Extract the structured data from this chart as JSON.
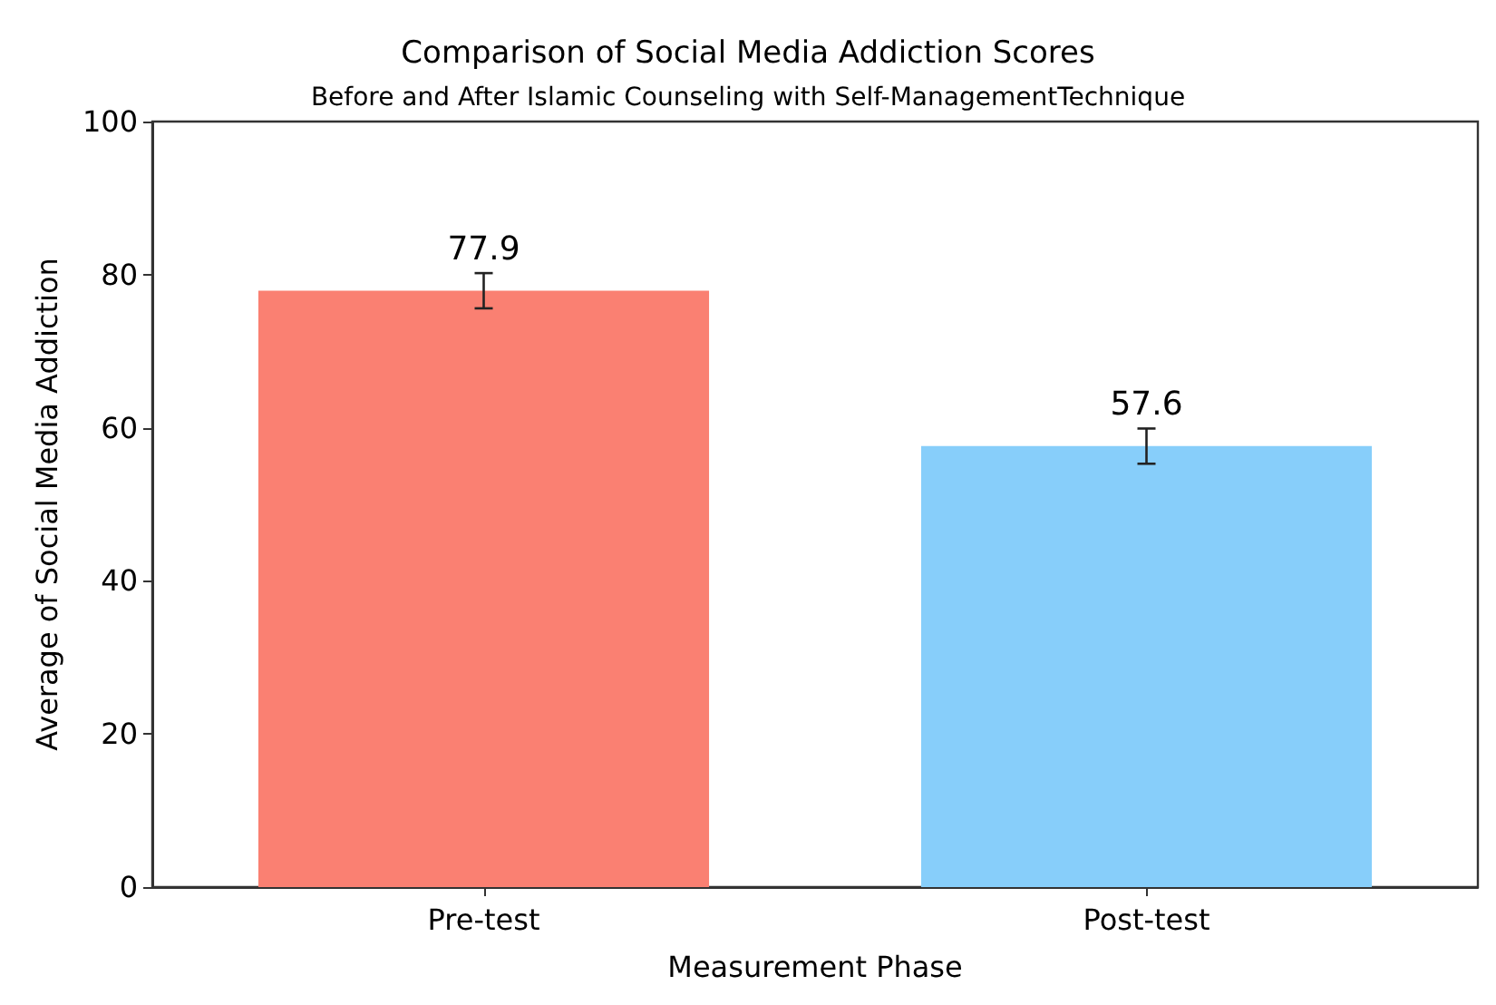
{
  "chart_data": {
    "type": "bar",
    "title": "Comparison of Social Media Addiction Scores",
    "subtitle": "Before and After Islamic Counseling with Self-ManagementTechnique",
    "xlabel": "Measurement Phase",
    "ylabel": "Average of Social Media Addiction",
    "categories": [
      "Pre-test",
      "Post-test"
    ],
    "values": [
      77.9,
      57.6
    ],
    "colors": [
      "#fa8072",
      "#87cefa"
    ],
    "errors": [
      2.3,
      2.3
    ],
    "data_labels": true,
    "ylim": [
      0,
      100
    ],
    "yticks": [
      0,
      20,
      40,
      60,
      80,
      100
    ],
    "grid": false
  }
}
